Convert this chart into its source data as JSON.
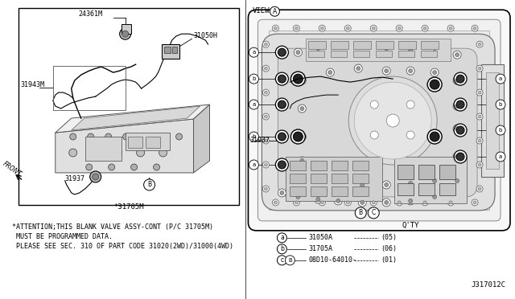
{
  "bg_color": "#ffffff",
  "diagram_code": "J317012C",
  "view_label": "VIEW",
  "view_circle_label": "A",
  "left_part_label": "*31705M",
  "left_note_line1": "*ATTENTION;THIS BLANK VALVE ASSY-CONT (P/C 31705M)",
  "left_note_line2": " MUST BE PROGRAMMED DATA.",
  "left_note_line3": " PLEASE SEE SEC. 310 OF PART CODE 31020(2WD)/31000(4WD)",
  "qty_title": "Q'TY",
  "qty_items": [
    {
      "circle": "a",
      "part": "31050A",
      "qty": "(05)"
    },
    {
      "circle": "b",
      "part": "31705A",
      "qty": "(06)"
    },
    {
      "circle": "c",
      "sub_circle": "B",
      "part": "08D10-64010-",
      "qty": "(01)"
    }
  ],
  "font_size": 6.5
}
